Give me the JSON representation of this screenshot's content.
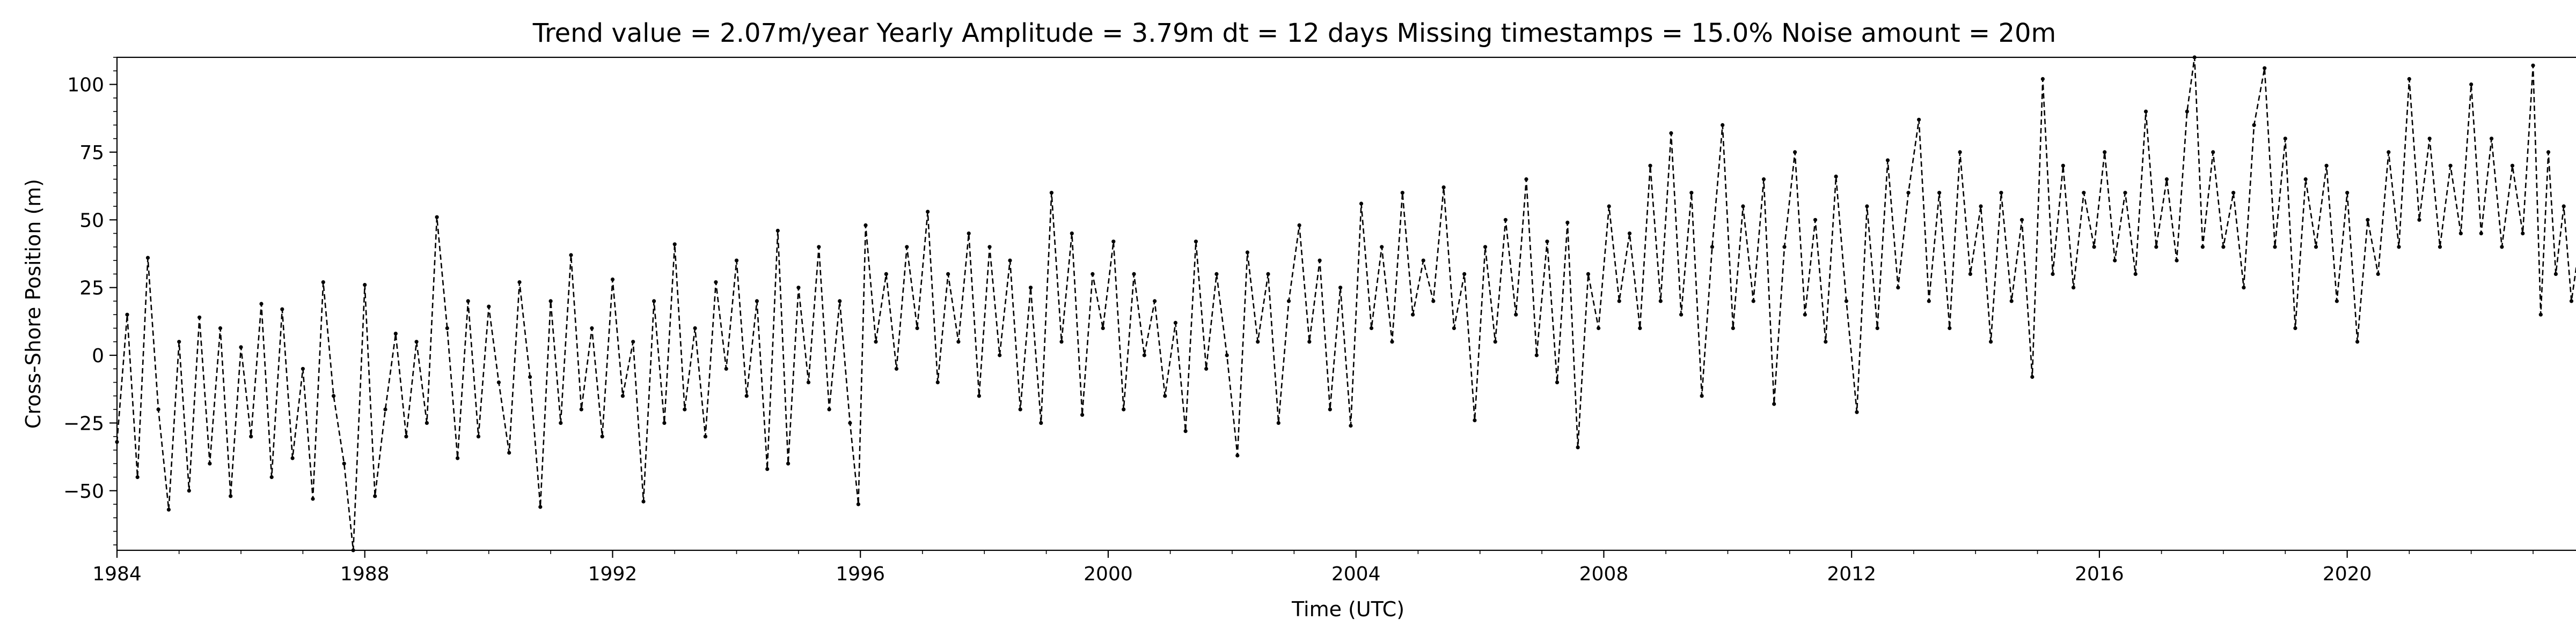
{
  "chart_data": {
    "type": "line",
    "title": "Trend value = 2.07m/year    Yearly Amplitude = 3.79m    dt = 12 days    Missing timestamps = 15.0%    Noise amount = 20m",
    "xlabel": "Time (UTC)",
    "ylabel": "Cross-Shore Position (m)",
    "xlim": [
      "1984-01-01",
      "2023-09-30"
    ],
    "ylim": [
      -72,
      110
    ],
    "x_ticks": [
      "1984",
      "1988",
      "1992",
      "1996",
      "2000",
      "2004",
      "2008",
      "2012",
      "2016",
      "2020"
    ],
    "y_ticks": [
      -50,
      -25,
      0,
      25,
      50,
      75,
      100
    ],
    "grid": false,
    "line_style": "dashed",
    "marker": "dot",
    "color": "#000000",
    "series": [
      {
        "values": [
          {
            "x": "1984-01-01",
            "y": -32
          },
          {
            "x": "1984-03-01",
            "y": 15
          },
          {
            "x": "1984-05-01",
            "y": -45
          },
          {
            "x": "1984-07-01",
            "y": 36
          },
          {
            "x": "1984-09-01",
            "y": -20
          },
          {
            "x": "1984-11-01",
            "y": -57
          },
          {
            "x": "1985-01-01",
            "y": 5
          },
          {
            "x": "1985-03-01",
            "y": -50
          },
          {
            "x": "1985-05-01",
            "y": 14
          },
          {
            "x": "1985-07-01",
            "y": -40
          },
          {
            "x": "1985-09-01",
            "y": 10
          },
          {
            "x": "1985-11-01",
            "y": -52
          },
          {
            "x": "1986-01-01",
            "y": 3
          },
          {
            "x": "1986-03-01",
            "y": -30
          },
          {
            "x": "1986-05-01",
            "y": 19
          },
          {
            "x": "1986-07-01",
            "y": -45
          },
          {
            "x": "1986-09-01",
            "y": 17
          },
          {
            "x": "1986-11-01",
            "y": -38
          },
          {
            "x": "1987-01-01",
            "y": -5
          },
          {
            "x": "1987-03-01",
            "y": -53
          },
          {
            "x": "1987-05-01",
            "y": 27
          },
          {
            "x": "1987-07-01",
            "y": -15
          },
          {
            "x": "1987-09-01",
            "y": -40
          },
          {
            "x": "1987-10-25",
            "y": -72
          },
          {
            "x": "1988-01-01",
            "y": 26
          },
          {
            "x": "1988-03-01",
            "y": -52
          },
          {
            "x": "1988-05-01",
            "y": -20
          },
          {
            "x": "1988-07-01",
            "y": 8
          },
          {
            "x": "1988-09-01",
            "y": -30
          },
          {
            "x": "1988-11-01",
            "y": 5
          },
          {
            "x": "1989-01-01",
            "y": -25
          },
          {
            "x": "1989-03-01",
            "y": 51
          },
          {
            "x": "1989-05-01",
            "y": 10
          },
          {
            "x": "1989-07-01",
            "y": -38
          },
          {
            "x": "1989-09-01",
            "y": 20
          },
          {
            "x": "1989-11-01",
            "y": -30
          },
          {
            "x": "1990-01-01",
            "y": 18
          },
          {
            "x": "1990-03-01",
            "y": -10
          },
          {
            "x": "1990-05-01",
            "y": -36
          },
          {
            "x": "1990-07-01",
            "y": 27
          },
          {
            "x": "1990-09-01",
            "y": -8
          },
          {
            "x": "1990-11-01",
            "y": -56
          },
          {
            "x": "1991-01-01",
            "y": 20
          },
          {
            "x": "1991-03-01",
            "y": -25
          },
          {
            "x": "1991-05-01",
            "y": 37
          },
          {
            "x": "1991-07-01",
            "y": -20
          },
          {
            "x": "1991-09-01",
            "y": 10
          },
          {
            "x": "1991-11-01",
            "y": -30
          },
          {
            "x": "1992-01-01",
            "y": 28
          },
          {
            "x": "1992-03-01",
            "y": -15
          },
          {
            "x": "1992-05-01",
            "y": 5
          },
          {
            "x": "1992-07-01",
            "y": -54
          },
          {
            "x": "1992-09-01",
            "y": 20
          },
          {
            "x": "1992-11-01",
            "y": -25
          },
          {
            "x": "1993-01-01",
            "y": 41
          },
          {
            "x": "1993-03-01",
            "y": -20
          },
          {
            "x": "1993-05-01",
            "y": 10
          },
          {
            "x": "1993-07-01",
            "y": -30
          },
          {
            "x": "1993-09-01",
            "y": 27
          },
          {
            "x": "1993-11-01",
            "y": -5
          },
          {
            "x": "1994-01-01",
            "y": 35
          },
          {
            "x": "1994-03-01",
            "y": -15
          },
          {
            "x": "1994-05-01",
            "y": 20
          },
          {
            "x": "1994-07-01",
            "y": -42
          },
          {
            "x": "1994-09-01",
            "y": 46
          },
          {
            "x": "1994-11-01",
            "y": -40
          },
          {
            "x": "1995-01-01",
            "y": 25
          },
          {
            "x": "1995-03-01",
            "y": -10
          },
          {
            "x": "1995-05-01",
            "y": 40
          },
          {
            "x": "1995-07-01",
            "y": -20
          },
          {
            "x": "1995-09-01",
            "y": 20
          },
          {
            "x": "1995-11-01",
            "y": -25
          },
          {
            "x": "1995-12-20",
            "y": -55
          },
          {
            "x": "1996-02-01",
            "y": 48
          },
          {
            "x": "1996-04-01",
            "y": 5
          },
          {
            "x": "1996-06-01",
            "y": 30
          },
          {
            "x": "1996-08-01",
            "y": -5
          },
          {
            "x": "1996-10-01",
            "y": 40
          },
          {
            "x": "1996-12-01",
            "y": 10
          },
          {
            "x": "1997-02-01",
            "y": 53
          },
          {
            "x": "1997-04-01",
            "y": -10
          },
          {
            "x": "1997-06-01",
            "y": 30
          },
          {
            "x": "1997-08-01",
            "y": 5
          },
          {
            "x": "1997-10-01",
            "y": 45
          },
          {
            "x": "1997-12-01",
            "y": -15
          },
          {
            "x": "1998-02-01",
            "y": 40
          },
          {
            "x": "1998-04-01",
            "y": 0
          },
          {
            "x": "1998-06-01",
            "y": 35
          },
          {
            "x": "1998-08-01",
            "y": -20
          },
          {
            "x": "1998-10-01",
            "y": 25
          },
          {
            "x": "1998-12-01",
            "y": -25
          },
          {
            "x": "1999-02-01",
            "y": 60
          },
          {
            "x": "1999-04-01",
            "y": 5
          },
          {
            "x": "1999-06-01",
            "y": 45
          },
          {
            "x": "1999-08-01",
            "y": -22
          },
          {
            "x": "1999-10-01",
            "y": 30
          },
          {
            "x": "1999-12-01",
            "y": 10
          },
          {
            "x": "2000-02-01",
            "y": 42
          },
          {
            "x": "2000-04-01",
            "y": -20
          },
          {
            "x": "2000-06-01",
            "y": 30
          },
          {
            "x": "2000-08-01",
            "y": 0
          },
          {
            "x": "2000-10-01",
            "y": 20
          },
          {
            "x": "2000-12-01",
            "y": -15
          },
          {
            "x": "2001-02-01",
            "y": 12
          },
          {
            "x": "2001-04-01",
            "y": -28
          },
          {
            "x": "2001-06-01",
            "y": 42
          },
          {
            "x": "2001-08-01",
            "y": -5
          },
          {
            "x": "2001-10-01",
            "y": 30
          },
          {
            "x": "2001-12-01",
            "y": 0
          },
          {
            "x": "2002-02-01",
            "y": -37
          },
          {
            "x": "2002-04-01",
            "y": 38
          },
          {
            "x": "2002-06-01",
            "y": 5
          },
          {
            "x": "2002-08-01",
            "y": 30
          },
          {
            "x": "2002-10-01",
            "y": -25
          },
          {
            "x": "2002-12-01",
            "y": 20
          },
          {
            "x": "2003-02-01",
            "y": 48
          },
          {
            "x": "2003-04-01",
            "y": 5
          },
          {
            "x": "2003-06-01",
            "y": 35
          },
          {
            "x": "2003-08-01",
            "y": -20
          },
          {
            "x": "2003-10-01",
            "y": 25
          },
          {
            "x": "2003-12-01",
            "y": -26
          },
          {
            "x": "2004-02-01",
            "y": 56
          },
          {
            "x": "2004-04-01",
            "y": 10
          },
          {
            "x": "2004-06-01",
            "y": 40
          },
          {
            "x": "2004-08-01",
            "y": 5
          },
          {
            "x": "2004-10-01",
            "y": 60
          },
          {
            "x": "2004-12-01",
            "y": 15
          },
          {
            "x": "2005-02-01",
            "y": 35
          },
          {
            "x": "2005-04-01",
            "y": 20
          },
          {
            "x": "2005-06-01",
            "y": 62
          },
          {
            "x": "2005-08-01",
            "y": 10
          },
          {
            "x": "2005-10-01",
            "y": 30
          },
          {
            "x": "2005-12-01",
            "y": -24
          },
          {
            "x": "2006-02-01",
            "y": 40
          },
          {
            "x": "2006-04-01",
            "y": 5
          },
          {
            "x": "2006-06-01",
            "y": 50
          },
          {
            "x": "2006-08-01",
            "y": 15
          },
          {
            "x": "2006-10-01",
            "y": 65
          },
          {
            "x": "2006-12-01",
            "y": 0
          },
          {
            "x": "2007-02-01",
            "y": 42
          },
          {
            "x": "2007-04-01",
            "y": -10
          },
          {
            "x": "2007-06-01",
            "y": 49
          },
          {
            "x": "2007-08-01",
            "y": -34
          },
          {
            "x": "2007-10-01",
            "y": 30
          },
          {
            "x": "2007-12-01",
            "y": 10
          },
          {
            "x": "2008-02-01",
            "y": 55
          },
          {
            "x": "2008-04-01",
            "y": 20
          },
          {
            "x": "2008-06-01",
            "y": 45
          },
          {
            "x": "2008-08-01",
            "y": 10
          },
          {
            "x": "2008-10-01",
            "y": 70
          },
          {
            "x": "2008-12-01",
            "y": 20
          },
          {
            "x": "2009-02-01",
            "y": 82
          },
          {
            "x": "2009-04-01",
            "y": 15
          },
          {
            "x": "2009-06-01",
            "y": 60
          },
          {
            "x": "2009-08-01",
            "y": -15
          },
          {
            "x": "2009-10-01",
            "y": 40
          },
          {
            "x": "2009-12-01",
            "y": 85
          },
          {
            "x": "2010-02-01",
            "y": 10
          },
          {
            "x": "2010-04-01",
            "y": 55
          },
          {
            "x": "2010-06-01",
            "y": 20
          },
          {
            "x": "2010-08-01",
            "y": 65
          },
          {
            "x": "2010-10-01",
            "y": -18
          },
          {
            "x": "2010-12-01",
            "y": 40
          },
          {
            "x": "2011-02-01",
            "y": 75
          },
          {
            "x": "2011-04-01",
            "y": 15
          },
          {
            "x": "2011-06-01",
            "y": 50
          },
          {
            "x": "2011-08-01",
            "y": 5
          },
          {
            "x": "2011-10-01",
            "y": 66
          },
          {
            "x": "2011-12-01",
            "y": 20
          },
          {
            "x": "2012-02-01",
            "y": -21
          },
          {
            "x": "2012-04-01",
            "y": 55
          },
          {
            "x": "2012-06-01",
            "y": 10
          },
          {
            "x": "2012-08-01",
            "y": 72
          },
          {
            "x": "2012-10-01",
            "y": 25
          },
          {
            "x": "2012-12-01",
            "y": 60
          },
          {
            "x": "2013-02-01",
            "y": 87
          },
          {
            "x": "2013-04-01",
            "y": 20
          },
          {
            "x": "2013-06-01",
            "y": 60
          },
          {
            "x": "2013-08-01",
            "y": 10
          },
          {
            "x": "2013-10-01",
            "y": 75
          },
          {
            "x": "2013-12-01",
            "y": 30
          },
          {
            "x": "2014-02-01",
            "y": 55
          },
          {
            "x": "2014-04-01",
            "y": 5
          },
          {
            "x": "2014-06-01",
            "y": 60
          },
          {
            "x": "2014-08-01",
            "y": 20
          },
          {
            "x": "2014-10-01",
            "y": 50
          },
          {
            "x": "2014-12-01",
            "y": -8
          },
          {
            "x": "2015-02-01",
            "y": 102
          },
          {
            "x": "2015-04-01",
            "y": 30
          },
          {
            "x": "2015-06-01",
            "y": 70
          },
          {
            "x": "2015-08-01",
            "y": 25
          },
          {
            "x": "2015-10-01",
            "y": 60
          },
          {
            "x": "2015-12-01",
            "y": 40
          },
          {
            "x": "2016-02-01",
            "y": 75
          },
          {
            "x": "2016-04-01",
            "y": 35
          },
          {
            "x": "2016-06-01",
            "y": 60
          },
          {
            "x": "2016-08-01",
            "y": 30
          },
          {
            "x": "2016-10-01",
            "y": 90
          },
          {
            "x": "2016-12-01",
            "y": 40
          },
          {
            "x": "2017-02-01",
            "y": 65
          },
          {
            "x": "2017-04-01",
            "y": 35
          },
          {
            "x": "2017-06-01",
            "y": 90
          },
          {
            "x": "2017-07-15",
            "y": 110
          },
          {
            "x": "2017-09-01",
            "y": 40
          },
          {
            "x": "2017-11-01",
            "y": 75
          },
          {
            "x": "2018-01-01",
            "y": 40
          },
          {
            "x": "2018-03-01",
            "y": 60
          },
          {
            "x": "2018-05-01",
            "y": 25
          },
          {
            "x": "2018-07-01",
            "y": 85
          },
          {
            "x": "2018-09-01",
            "y": 106
          },
          {
            "x": "2018-11-01",
            "y": 40
          },
          {
            "x": "2019-01-01",
            "y": 80
          },
          {
            "x": "2019-03-01",
            "y": 10
          },
          {
            "x": "2019-05-01",
            "y": 65
          },
          {
            "x": "2019-07-01",
            "y": 40
          },
          {
            "x": "2019-09-01",
            "y": 70
          },
          {
            "x": "2019-11-01",
            "y": 20
          },
          {
            "x": "2020-01-01",
            "y": 60
          },
          {
            "x": "2020-03-01",
            "y": 5
          },
          {
            "x": "2020-05-01",
            "y": 50
          },
          {
            "x": "2020-07-01",
            "y": 30
          },
          {
            "x": "2020-09-01",
            "y": 75
          },
          {
            "x": "2020-11-01",
            "y": 40
          },
          {
            "x": "2021-01-01",
            "y": 102
          },
          {
            "x": "2021-03-01",
            "y": 50
          },
          {
            "x": "2021-05-01",
            "y": 80
          },
          {
            "x": "2021-07-01",
            "y": 40
          },
          {
            "x": "2021-09-01",
            "y": 70
          },
          {
            "x": "2021-11-01",
            "y": 45
          },
          {
            "x": "2022-01-01",
            "y": 100
          },
          {
            "x": "2022-03-01",
            "y": 45
          },
          {
            "x": "2022-05-01",
            "y": 80
          },
          {
            "x": "2022-07-01",
            "y": 40
          },
          {
            "x": "2022-09-01",
            "y": 70
          },
          {
            "x": "2022-11-01",
            "y": 45
          },
          {
            "x": "2023-01-01",
            "y": 107
          },
          {
            "x": "2023-02-15",
            "y": 15
          },
          {
            "x": "2023-04-01",
            "y": 75
          },
          {
            "x": "2023-05-15",
            "y": 30
          },
          {
            "x": "2023-07-01",
            "y": 55
          },
          {
            "x": "2023-08-15",
            "y": 20
          },
          {
            "x": "2023-09-30",
            "y": 40
          }
        ]
      }
    ]
  }
}
